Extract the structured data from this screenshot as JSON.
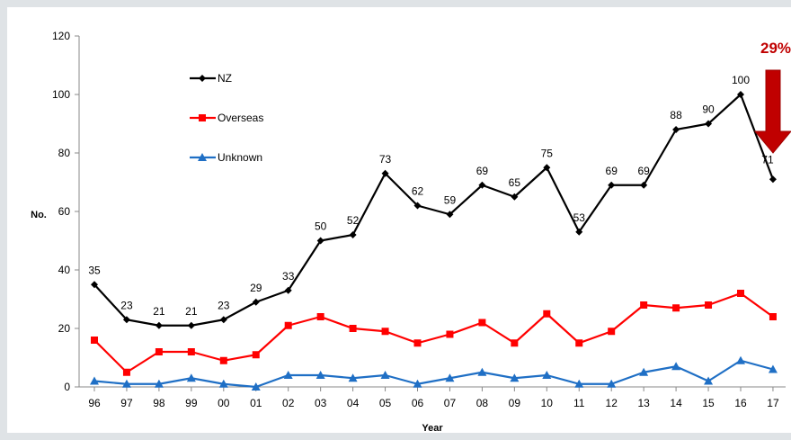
{
  "chart_data": {
    "type": "line",
    "categories": [
      "96",
      "97",
      "98",
      "99",
      "00",
      "01",
      "02",
      "03",
      "04",
      "05",
      "06",
      "07",
      "08",
      "09",
      "10",
      "11",
      "12",
      "13",
      "14",
      "15",
      "16",
      "17"
    ],
    "xlabel": "Year",
    "ylabel": "No.",
    "ylim": [
      0,
      120
    ],
    "yticks": [
      0,
      20,
      40,
      60,
      80,
      100,
      120
    ],
    "grid": false,
    "legend_position": "top-left",
    "series": [
      {
        "name": "NZ",
        "color": "#000000",
        "marker": "diamond",
        "labeled": true,
        "values": [
          35,
          23,
          21,
          21,
          23,
          29,
          33,
          50,
          52,
          73,
          62,
          59,
          69,
          65,
          75,
          53,
          69,
          69,
          88,
          90,
          100,
          71
        ]
      },
      {
        "name": "Overseas",
        "color": "#ff0000",
        "marker": "square",
        "labeled": false,
        "values": [
          16,
          5,
          12,
          12,
          9,
          11,
          21,
          24,
          20,
          19,
          15,
          18,
          22,
          15,
          25,
          15,
          19,
          28,
          27,
          28,
          32,
          24
        ]
      },
      {
        "name": "Unknown",
        "color": "#1f6fc5",
        "marker": "triangle",
        "labeled": false,
        "values": [
          2,
          1,
          1,
          3,
          1,
          0,
          4,
          4,
          3,
          4,
          1,
          3,
          5,
          3,
          4,
          1,
          1,
          5,
          7,
          2,
          9,
          6
        ]
      }
    ],
    "annotation": {
      "text": "29%",
      "color": "#c00000",
      "icon": "down-arrow-icon"
    }
  }
}
